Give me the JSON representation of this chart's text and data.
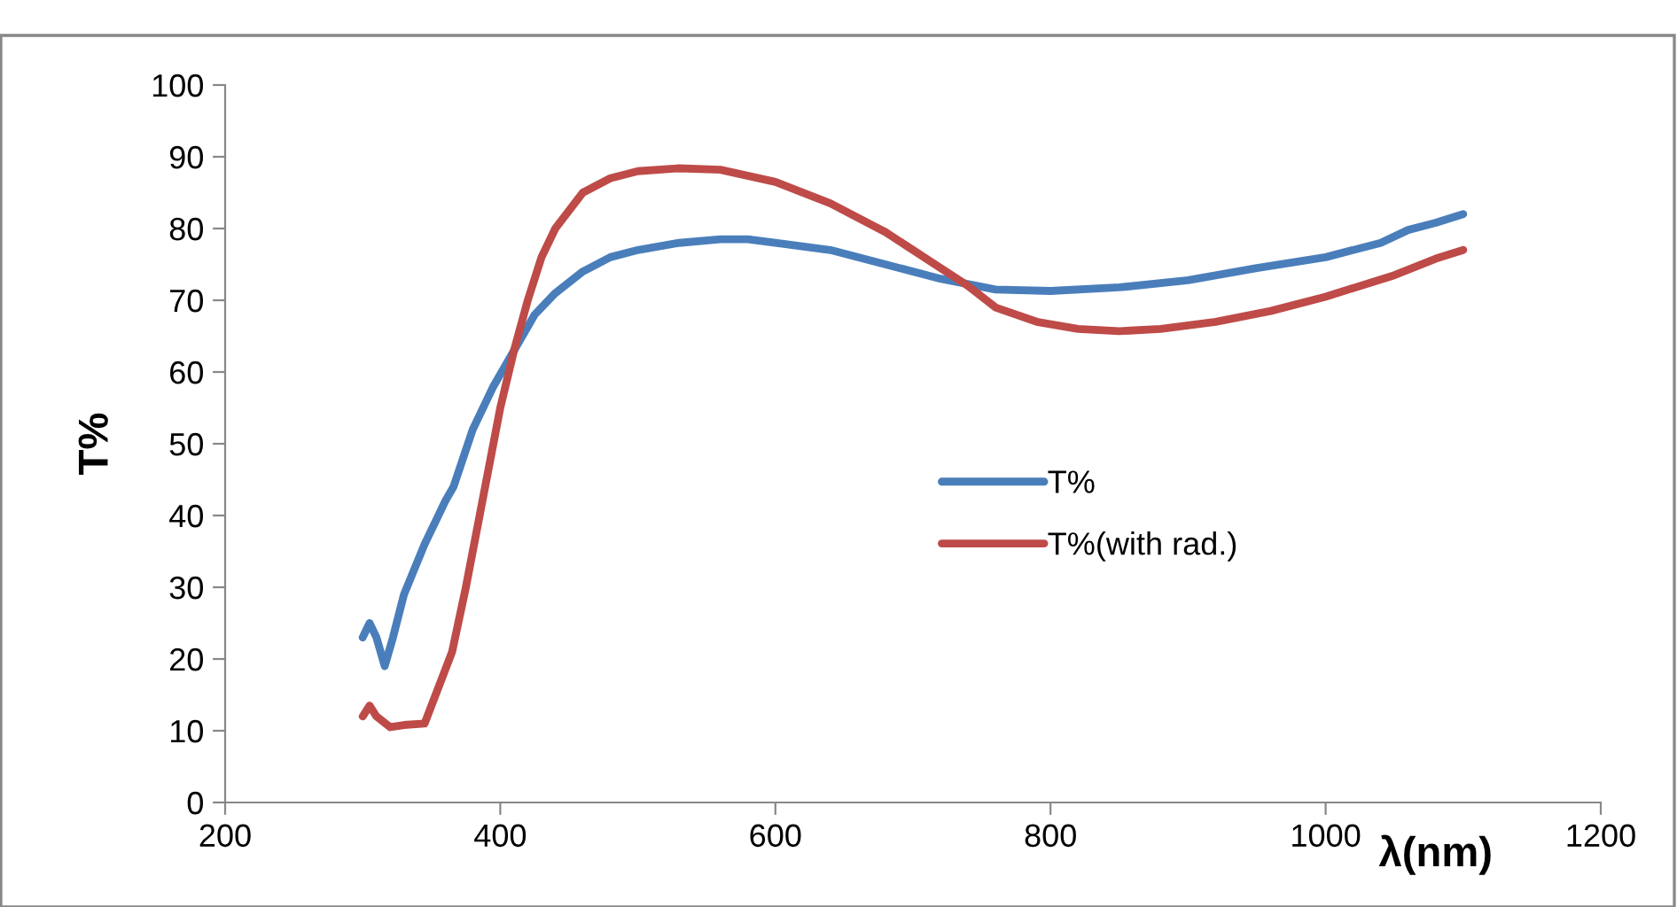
{
  "chart_data": {
    "type": "line",
    "xlabel": "λ(nm)",
    "ylabel": "T%",
    "xlim": [
      200,
      1200
    ],
    "xticks": [
      200,
      400,
      600,
      800,
      1000,
      1200
    ],
    "ylim": [
      0,
      100
    ],
    "yticks": [
      0,
      10,
      20,
      30,
      40,
      50,
      60,
      70,
      80,
      90,
      100
    ],
    "grid": false,
    "legend": "right",
    "marker": "none",
    "line_style": "solid",
    "series": [
      {
        "name": "T%",
        "color": "#4a7ebb",
        "x": [
          300,
          305,
          310,
          316,
          322,
          330,
          345,
          360,
          366,
          380,
          395,
          410,
          425,
          440,
          460,
          480,
          500,
          530,
          560,
          580,
          600,
          640,
          680,
          720,
          760,
          800,
          850,
          900,
          950,
          1000,
          1040,
          1060,
          1080,
          1100
        ],
        "values": [
          23,
          25,
          23,
          19,
          23,
          29,
          36,
          42,
          44,
          52,
          58,
          63,
          68,
          71,
          74,
          76,
          77,
          78,
          78.5,
          78.5,
          78,
          77,
          75,
          73,
          71.5,
          71.3,
          71.8,
          72.8,
          74.5,
          76,
          78,
          79.8,
          80.8,
          82
        ]
      },
      {
        "name": "T%(with rad.)",
        "color": "#be4b48",
        "x": [
          300,
          305,
          310,
          320,
          330,
          345,
          355,
          365,
          375,
          390,
          400,
          410,
          420,
          430,
          440,
          460,
          480,
          500,
          530,
          560,
          600,
          640,
          680,
          720,
          740,
          760,
          790,
          820,
          850,
          880,
          920,
          960,
          1000,
          1050,
          1080,
          1100
        ],
        "values": [
          12,
          13.5,
          12,
          10.5,
          10.8,
          11,
          16,
          21,
          30,
          45,
          55,
          63,
          70,
          76,
          80,
          85,
          87,
          88,
          88.4,
          88.2,
          86.5,
          83.5,
          79.5,
          74.5,
          72,
          69,
          67,
          66,
          65.7,
          66,
          67,
          68.5,
          70.5,
          73.5,
          75.8,
          77
        ]
      }
    ]
  }
}
